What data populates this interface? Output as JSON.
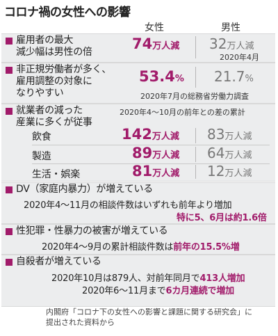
{
  "title": "コロナ禍の女性への影響",
  "columns": {
    "female": "女性",
    "male": "男性"
  },
  "accent_color": "#a11b6a",
  "sec1": {
    "label_lines": [
      "雇用者の最大",
      "減少幅は男性の倍"
    ],
    "female_num": "74",
    "female_unit": "万人減",
    "male_num": "32",
    "male_unit": "万人減",
    "note": "2020年4月"
  },
  "sec2": {
    "label_lines": [
      "非正規労働者が多く、",
      "雇用調整の対象に",
      "なりやすい"
    ],
    "female_num": "53.4",
    "female_unit": "%",
    "male_num": "21.7",
    "male_unit": "%",
    "note": "2020年7月の総務省労働力調査"
  },
  "sec3": {
    "label_lines": [
      "就業者の減った",
      "産業に多くが従事"
    ],
    "note": "2020年4～10月の前年との差の累計",
    "rows": [
      {
        "name": "飲食",
        "female_num": "142",
        "female_unit": "万人減",
        "male_num": "83",
        "male_unit": "万人減"
      },
      {
        "name": "製造",
        "female_num": "89",
        "female_unit": "万人減",
        "male_num": "64",
        "male_unit": "万人減"
      },
      {
        "name": "生活・娯楽",
        "female_num": "81",
        "female_unit": "万人減",
        "male_num": "12",
        "male_unit": "万人減"
      }
    ]
  },
  "sec4": {
    "title": "DV（家庭内暴力）が増えている",
    "line1": "2020年4～11月の相談件数はいずれも前年より増加",
    "line2": "特に5、6月は約1.6倍"
  },
  "sec5": {
    "title": "性犯罪・性暴力の被害が増えている",
    "line1_plain": "2020年4～9月の累計相談件数は",
    "line1_hl": "前年の15.5%増"
  },
  "sec6": {
    "title": "自殺者が増えている",
    "line1_plain": "2020年10月は879人、対前年同月で",
    "line1_hl": "413人増加",
    "line2_plain": "2020年6～11月まで",
    "line2_hl": "6カ月連続で増加"
  },
  "source_lines": [
    "内閣府「コロナ下の女性への影響と課題に関する研究会」に",
    "提出された資料から"
  ]
}
